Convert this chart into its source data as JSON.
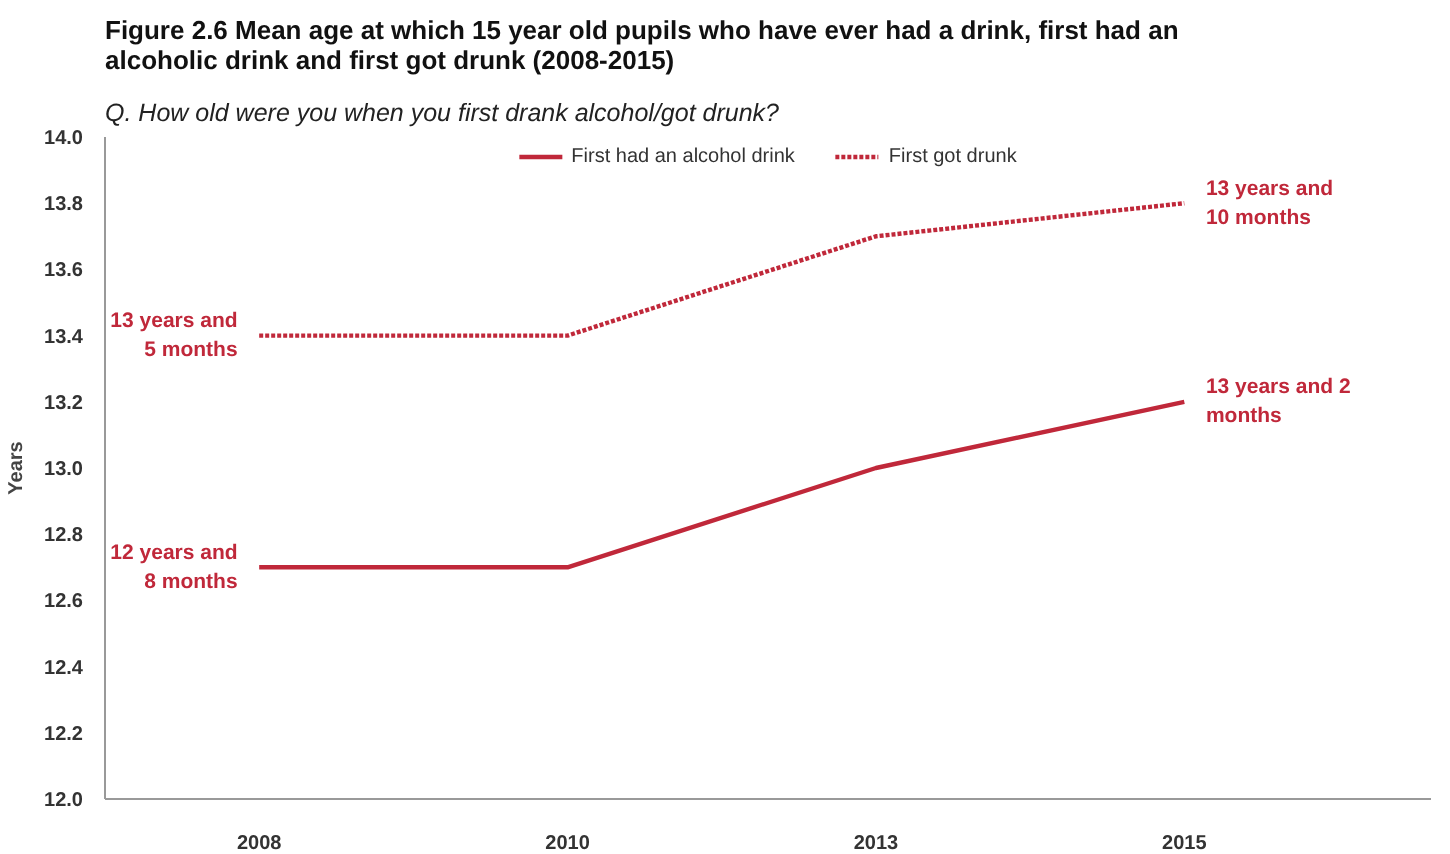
{
  "chart_data": {
    "type": "line",
    "title": "Figure 2.6 Mean age at which 15 year old pupils who have ever had a drink, first had an\nalcoholic drink and first got drunk (2008-2015)",
    "subtitle": "Q. How old were you when you first drank alcohol/got drunk?",
    "ylabel": "Years",
    "categories": [
      "2008",
      "2010",
      "2013",
      "2015"
    ],
    "series": [
      {
        "name": "First had an alcohol drink",
        "color": "#c0283a",
        "line_style": "solid",
        "values": [
          12.7,
          12.7,
          13.0,
          13.2
        ]
      },
      {
        "name": "First got drunk",
        "color": "#c0283a",
        "line_style": "dotted",
        "values": [
          13.4,
          13.4,
          13.7,
          13.8
        ]
      }
    ],
    "ylim": [
      12.0,
      14.0
    ],
    "yticks": [
      {
        "value": 12.0,
        "label": "12.0"
      },
      {
        "value": 12.2,
        "label": "12.2"
      },
      {
        "value": 12.4,
        "label": "12.4"
      },
      {
        "value": 12.6,
        "label": "12.6"
      },
      {
        "value": 12.8,
        "label": "12.8"
      },
      {
        "value": 13.0,
        "label": "13.0"
      },
      {
        "value": 13.2,
        "label": "13.2"
      },
      {
        "value": 13.4,
        "label": "13.4"
      },
      {
        "value": 13.6,
        "label": "13.6"
      },
      {
        "value": 13.8,
        "label": "13.8"
      },
      {
        "value": 14.0,
        "label": "14.0"
      }
    ],
    "annotations": [
      {
        "text": "13 years and\n5 months",
        "x": "2008",
        "y": 13.4
      },
      {
        "text": "12 years and\n8 months",
        "x": "2008",
        "y": 12.7
      },
      {
        "text": "13 years and\n10 months",
        "x": "2015",
        "y": 13.8
      },
      {
        "text": "13 years and 2\nmonths",
        "x": "2015",
        "y": 13.2
      }
    ],
    "grid": false,
    "legend": "top",
    "marker": "none"
  }
}
